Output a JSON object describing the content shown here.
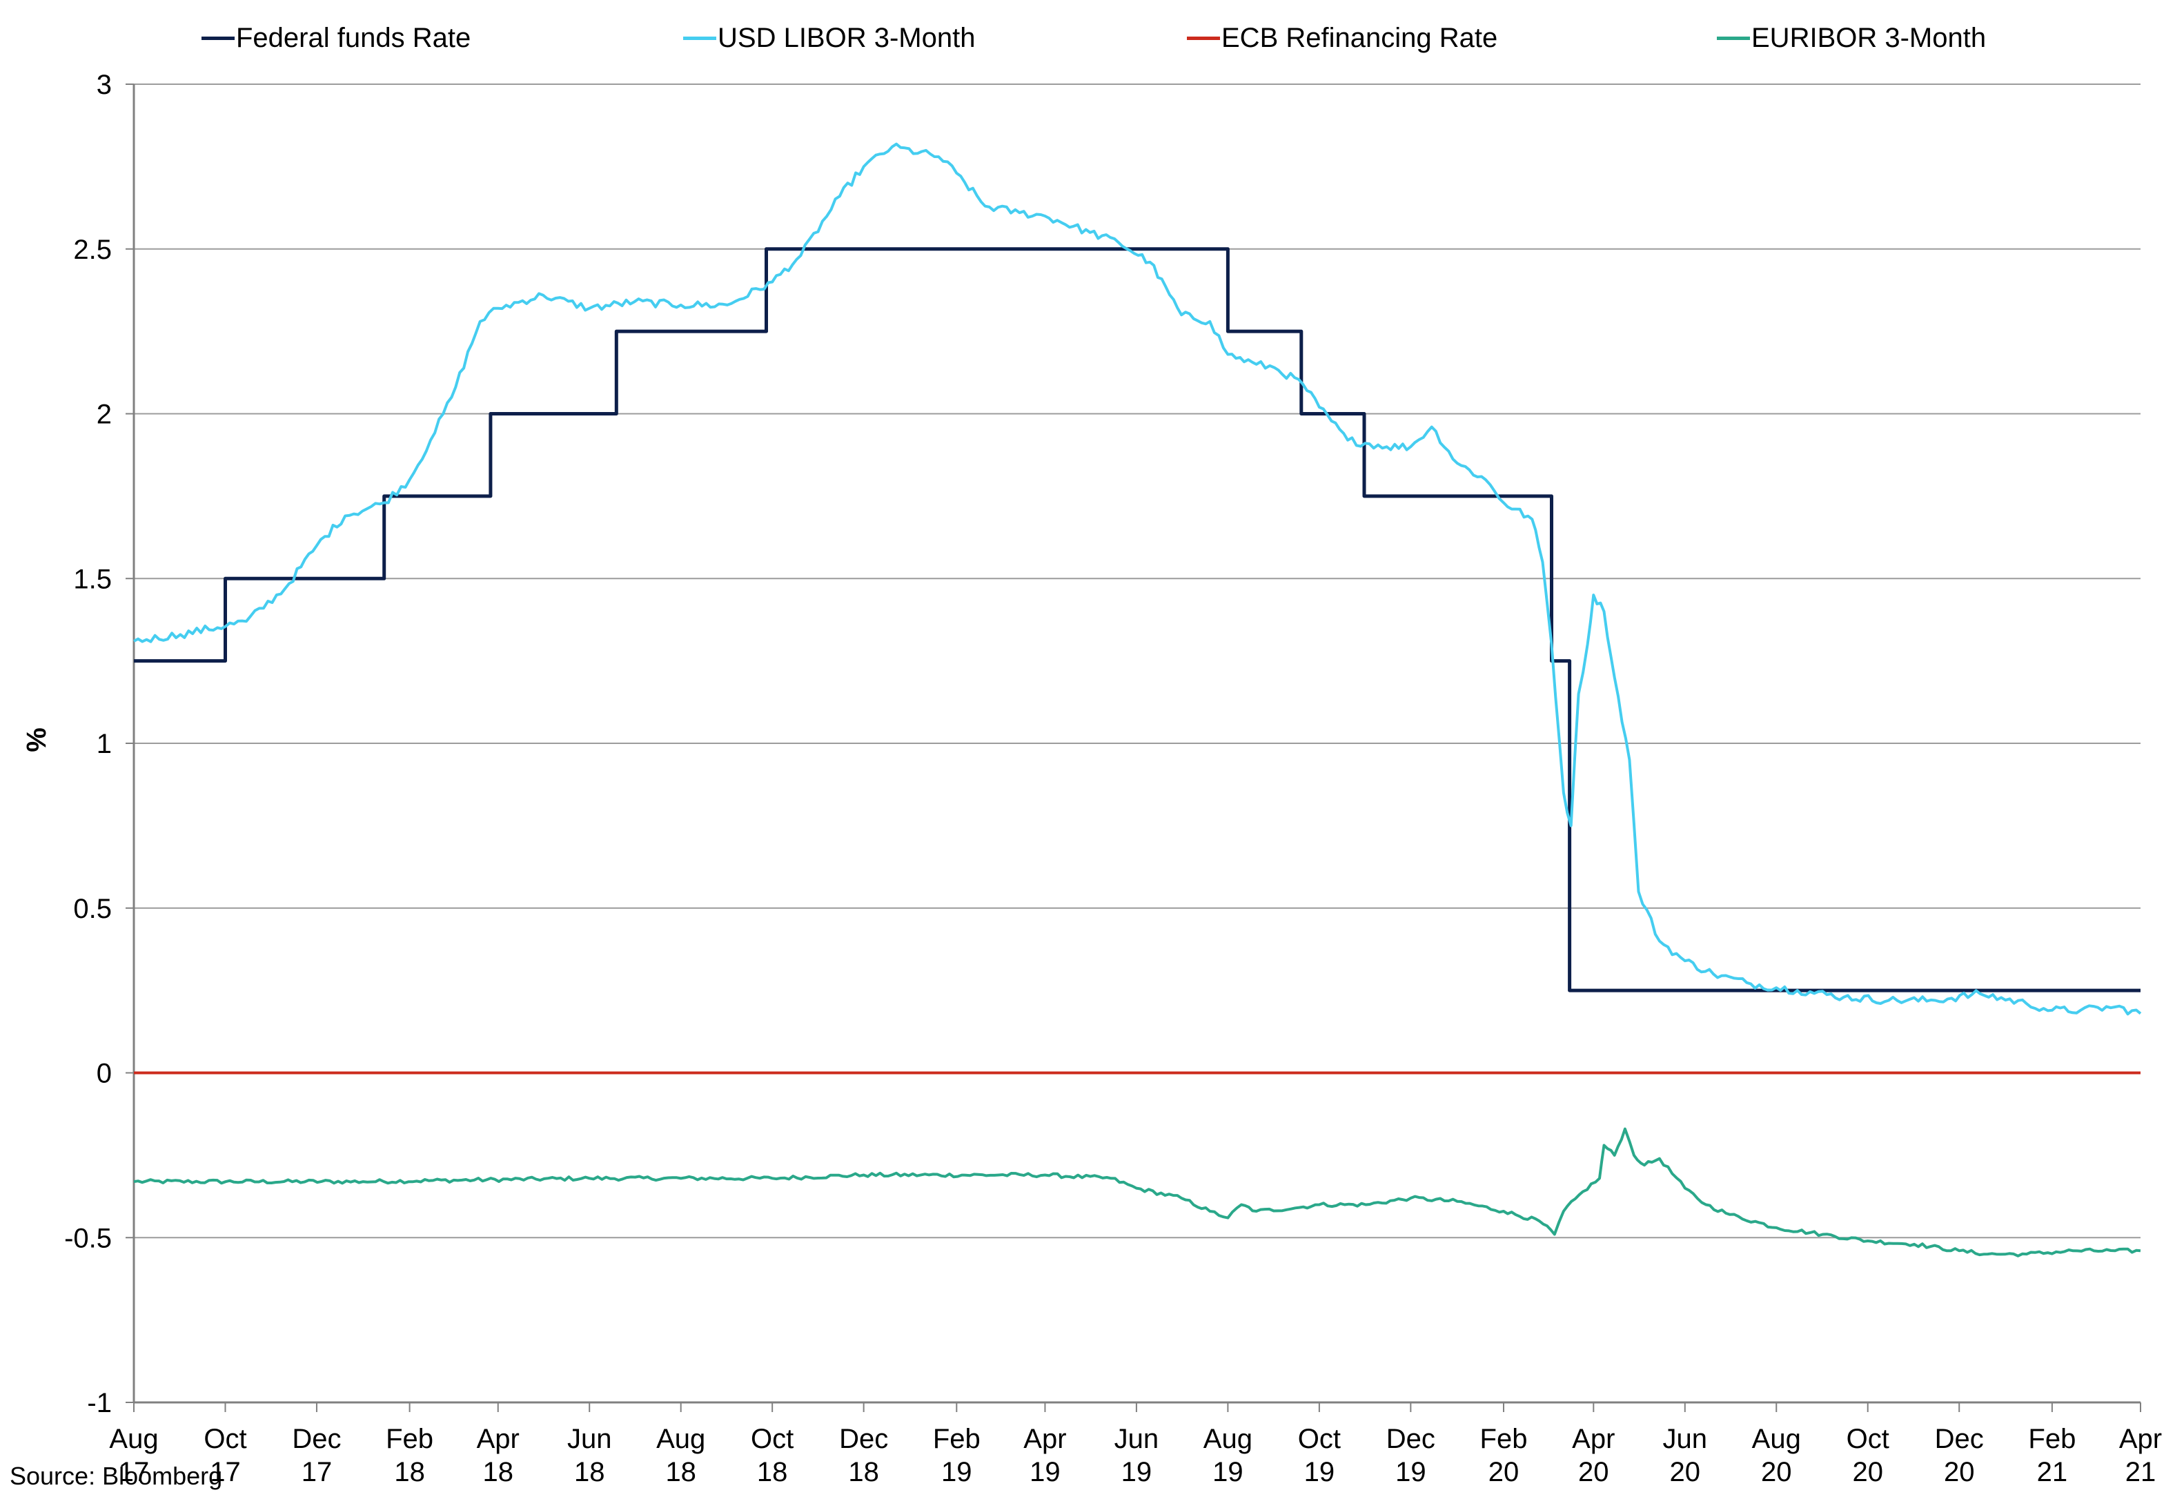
{
  "source_note": "Source: Bloomberg",
  "colors": {
    "fed_funds": "#0d1f4a",
    "usd_libor": "#45cdf0",
    "ecb_refi": "#cc2b1d",
    "euribor": "#2aa88a",
    "grid": "#9c9c9c",
    "axis": "#808080"
  },
  "chart_data": {
    "type": "line",
    "title": "",
    "xlabel": "",
    "ylabel": "%",
    "ylim": [
      -1,
      3
    ],
    "xlim": [
      "2017-08-01",
      "2021-04-01"
    ],
    "yticks": [
      "3",
      "2.5",
      "2",
      "1.5",
      "1",
      "0.5",
      "0",
      "-0.5",
      "-1"
    ],
    "xticks": [
      {
        "date": "2017-08-01",
        "month": "Aug",
        "year": "17"
      },
      {
        "date": "2017-10-01",
        "month": "Oct",
        "year": "17"
      },
      {
        "date": "2017-12-01",
        "month": "Dec",
        "year": "17"
      },
      {
        "date": "2018-02-01",
        "month": "Feb",
        "year": "18"
      },
      {
        "date": "2018-04-01",
        "month": "Apr",
        "year": "18"
      },
      {
        "date": "2018-06-01",
        "month": "Jun",
        "year": "18"
      },
      {
        "date": "2018-08-01",
        "month": "Aug",
        "year": "18"
      },
      {
        "date": "2018-10-01",
        "month": "Oct",
        "year": "18"
      },
      {
        "date": "2018-12-01",
        "month": "Dec",
        "year": "18"
      },
      {
        "date": "2019-02-01",
        "month": "Feb",
        "year": "19"
      },
      {
        "date": "2019-04-01",
        "month": "Apr",
        "year": "19"
      },
      {
        "date": "2019-06-01",
        "month": "Jun",
        "year": "19"
      },
      {
        "date": "2019-08-01",
        "month": "Aug",
        "year": "19"
      },
      {
        "date": "2019-10-01",
        "month": "Oct",
        "year": "19"
      },
      {
        "date": "2019-12-01",
        "month": "Dec",
        "year": "19"
      },
      {
        "date": "2020-02-01",
        "month": "Feb",
        "year": "20"
      },
      {
        "date": "2020-04-01",
        "month": "Apr",
        "year": "20"
      },
      {
        "date": "2020-06-01",
        "month": "Jun",
        "year": "20"
      },
      {
        "date": "2020-08-01",
        "month": "Aug",
        "year": "20"
      },
      {
        "date": "2020-10-01",
        "month": "Oct",
        "year": "20"
      },
      {
        "date": "2020-12-01",
        "month": "Dec",
        "year": "20"
      },
      {
        "date": "2021-02-01",
        "month": "Feb",
        "year": "21"
      },
      {
        "date": "2021-04-01",
        "month": "Apr",
        "year": "21"
      }
    ],
    "grid": true,
    "legend_position": "top",
    "series": [
      {
        "name": "Federal funds Rate",
        "key": "fed_funds",
        "step": true,
        "points": [
          [
            "2017-08-01",
            1.25
          ],
          [
            "2017-10-01",
            1.5
          ],
          [
            "2018-01-15",
            1.75
          ],
          [
            "2018-03-27",
            2.0
          ],
          [
            "2018-06-19",
            2.25
          ],
          [
            "2018-09-27",
            2.5
          ],
          [
            "2019-08-01",
            2.25
          ],
          [
            "2019-09-19",
            2.0
          ],
          [
            "2019-10-31",
            1.75
          ],
          [
            "2020-03-04",
            1.25
          ],
          [
            "2020-03-16",
            0.25
          ],
          [
            "2021-04-01",
            0.25
          ]
        ]
      },
      {
        "name": "USD LIBOR 3-Month",
        "key": "usd_libor",
        "points": [
          [
            "2017-08-01",
            1.31
          ],
          [
            "2017-09-01",
            1.33
          ],
          [
            "2017-10-15",
            1.37
          ],
          [
            "2017-11-10",
            1.47
          ],
          [
            "2017-12-01",
            1.6
          ],
          [
            "2017-12-20",
            1.69
          ],
          [
            "2018-01-15",
            1.73
          ],
          [
            "2018-02-01",
            1.8
          ],
          [
            "2018-02-15",
            1.92
          ],
          [
            "2018-03-01",
            2.05
          ],
          [
            "2018-03-20",
            2.28
          ],
          [
            "2018-04-01",
            2.32
          ],
          [
            "2018-05-01",
            2.36
          ],
          [
            "2018-06-01",
            2.32
          ],
          [
            "2018-07-01",
            2.34
          ],
          [
            "2018-08-01",
            2.33
          ],
          [
            "2018-09-01",
            2.33
          ],
          [
            "2018-10-01",
            2.4
          ],
          [
            "2018-10-20",
            2.48
          ],
          [
            "2018-11-15",
            2.66
          ],
          [
            "2018-12-01",
            2.75
          ],
          [
            "2018-12-20",
            2.81
          ],
          [
            "2019-01-20",
            2.78
          ],
          [
            "2019-02-01",
            2.73
          ],
          [
            "2019-02-20",
            2.63
          ],
          [
            "2019-03-15",
            2.61
          ],
          [
            "2019-04-01",
            2.6
          ],
          [
            "2019-05-01",
            2.55
          ],
          [
            "2019-05-20",
            2.52
          ],
          [
            "2019-06-10",
            2.46
          ],
          [
            "2019-07-01",
            2.3
          ],
          [
            "2019-07-20",
            2.28
          ],
          [
            "2019-08-01",
            2.18
          ],
          [
            "2019-08-20",
            2.15
          ],
          [
            "2019-09-01",
            2.14
          ],
          [
            "2019-09-20",
            2.09
          ],
          [
            "2019-10-01",
            2.02
          ],
          [
            "2019-10-20",
            1.92
          ],
          [
            "2019-11-15",
            1.9
          ],
          [
            "2019-12-01",
            1.9
          ],
          [
            "2019-12-15",
            1.96
          ],
          [
            "2020-01-01",
            1.85
          ],
          [
            "2020-01-20",
            1.8
          ],
          [
            "2020-02-01",
            1.73
          ],
          [
            "2020-02-20",
            1.68
          ],
          [
            "2020-02-27",
            1.55
          ],
          [
            "2020-03-04",
            1.3
          ],
          [
            "2020-03-12",
            0.85
          ],
          [
            "2020-03-17",
            0.75
          ],
          [
            "2020-03-22",
            1.15
          ],
          [
            "2020-03-28",
            1.3
          ],
          [
            "2020-04-01",
            1.45
          ],
          [
            "2020-04-08",
            1.4
          ],
          [
            "2020-04-15",
            1.2
          ],
          [
            "2020-04-25",
            0.95
          ],
          [
            "2020-05-01",
            0.55
          ],
          [
            "2020-05-15",
            0.4
          ],
          [
            "2020-06-01",
            0.34
          ],
          [
            "2020-06-20",
            0.3
          ],
          [
            "2020-07-15",
            0.27
          ],
          [
            "2020-08-15",
            0.25
          ],
          [
            "2020-09-15",
            0.23
          ],
          [
            "2020-10-15",
            0.22
          ],
          [
            "2020-11-15",
            0.22
          ],
          [
            "2020-12-15",
            0.24
          ],
          [
            "2021-01-15",
            0.21
          ],
          [
            "2021-02-01",
            0.19
          ],
          [
            "2021-02-20",
            0.19
          ],
          [
            "2021-03-15",
            0.2
          ],
          [
            "2021-04-01",
            0.18
          ]
        ]
      },
      {
        "name": "ECB Refinancing Rate",
        "key": "ecb_refi",
        "points": [
          [
            "2017-08-01",
            0.0
          ],
          [
            "2021-04-01",
            0.0
          ]
        ]
      },
      {
        "name": "EURIBOR 3-Month",
        "key": "euribor",
        "points": [
          [
            "2017-08-01",
            -0.33
          ],
          [
            "2018-01-01",
            -0.33
          ],
          [
            "2018-06-01",
            -0.32
          ],
          [
            "2018-10-01",
            -0.32
          ],
          [
            "2018-12-01",
            -0.31
          ],
          [
            "2019-03-01",
            -0.31
          ],
          [
            "2019-04-01",
            -0.31
          ],
          [
            "2019-05-15",
            -0.32
          ],
          [
            "2019-06-01",
            -0.35
          ],
          [
            "2019-07-01",
            -0.38
          ],
          [
            "2019-07-20",
            -0.42
          ],
          [
            "2019-08-01",
            -0.44
          ],
          [
            "2019-08-10",
            -0.4
          ],
          [
            "2019-08-20",
            -0.42
          ],
          [
            "2019-09-15",
            -0.41
          ],
          [
            "2019-10-01",
            -0.4
          ],
          [
            "2019-11-01",
            -0.4
          ],
          [
            "2019-12-01",
            -0.38
          ],
          [
            "2020-01-01",
            -0.39
          ],
          [
            "2020-02-01",
            -0.42
          ],
          [
            "2020-02-25",
            -0.45
          ],
          [
            "2020-03-06",
            -0.49
          ],
          [
            "2020-03-12",
            -0.42
          ],
          [
            "2020-03-25",
            -0.36
          ],
          [
            "2020-04-05",
            -0.32
          ],
          [
            "2020-04-08",
            -0.22
          ],
          [
            "2020-04-15",
            -0.25
          ],
          [
            "2020-04-22",
            -0.17
          ],
          [
            "2020-04-28",
            -0.25
          ],
          [
            "2020-05-05",
            -0.28
          ],
          [
            "2020-05-15",
            -0.26
          ],
          [
            "2020-06-01",
            -0.35
          ],
          [
            "2020-06-15",
            -0.4
          ],
          [
            "2020-07-01",
            -0.43
          ],
          [
            "2020-08-01",
            -0.47
          ],
          [
            "2020-09-01",
            -0.49
          ],
          [
            "2020-10-01",
            -0.51
          ],
          [
            "2020-11-01",
            -0.52
          ],
          [
            "2020-12-01",
            -0.54
          ],
          [
            "2020-12-20",
            -0.55
          ],
          [
            "2021-01-15",
            -0.55
          ],
          [
            "2021-02-15",
            -0.54
          ],
          [
            "2021-03-15",
            -0.54
          ],
          [
            "2021-04-01",
            -0.54
          ]
        ]
      }
    ]
  }
}
